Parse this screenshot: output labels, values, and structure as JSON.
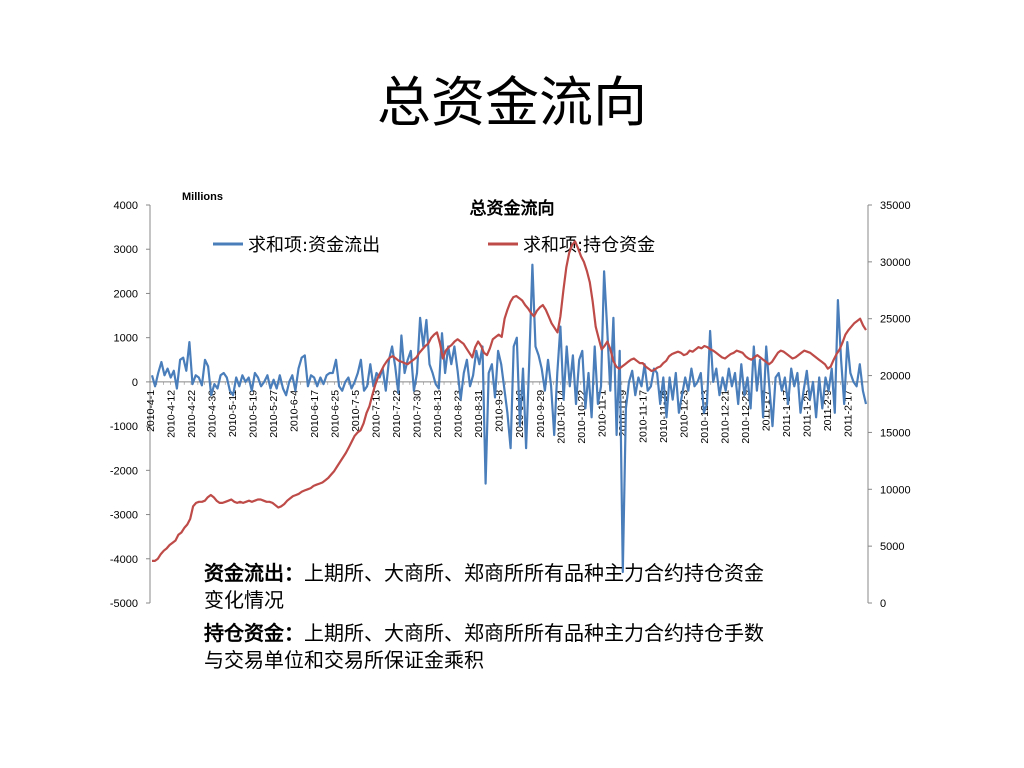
{
  "slide": {
    "title": "总资金流向"
  },
  "notes": [
    {
      "term": "资金流出：",
      "text": "上期所、大商所、郑商所所有品种主力合约持仓资金变化情况"
    },
    {
      "term": "持仓资金：",
      "text": "上期所、大商所、郑商所所有品种主力合约持仓手数与交易单位和交易所保证金乘积"
    }
  ],
  "chart_data": {
    "type": "line",
    "title": "总资金流向",
    "units_label": "Millions",
    "legend_position": "top",
    "grid": false,
    "y_left": {
      "min": -5000,
      "max": 4000,
      "ticks": [
        4000,
        3000,
        2000,
        1000,
        0,
        -1000,
        -2000,
        -3000,
        -4000,
        -5000
      ]
    },
    "y_right": {
      "min": 0,
      "max": 35000,
      "ticks": [
        35000,
        30000,
        25000,
        20000,
        15000,
        10000,
        5000,
        0
      ]
    },
    "x_tick_labels": [
      "2010-4-1",
      "2010-4-12",
      "2010-4-22",
      "2010-4-30",
      "2010-5-11",
      "2010-5-19",
      "2010-5-27",
      "2010-6-4",
      "2010-6-17",
      "2010-6-25",
      "2010-7-5",
      "2010-7-13",
      "2010-7-22",
      "2010-7-30",
      "2010-8-13",
      "2010-8-23",
      "2010-8-31",
      "2010-9-8",
      "2010-9-16",
      "2010-9-29",
      "2010-10-14",
      "2010-10-22",
      "2010-11-1",
      "2010-11-9",
      "2010-11-17",
      "2010-11-25",
      "2010-12-3",
      "2010-12-13",
      "2010-12-21",
      "2010-12-29",
      "2011-1-7",
      "2011-1-17",
      "2011-1-25",
      "2011-2-9",
      "2011-2-17"
    ],
    "series": [
      {
        "name": "求和项:资金流出",
        "axis": "left",
        "color": "#4a7ebb",
        "values": [
          150,
          -100,
          200,
          450,
          150,
          300,
          100,
          250,
          -150,
          500,
          550,
          250,
          900,
          -50,
          150,
          100,
          -80,
          500,
          350,
          -300,
          -50,
          -150,
          150,
          200,
          100,
          -200,
          -300,
          100,
          -100,
          150,
          0,
          100,
          -200,
          200,
          100,
          -100,
          0,
          150,
          -150,
          50,
          -150,
          150,
          -150,
          -300,
          0,
          150,
          -200,
          300,
          550,
          600,
          -100,
          150,
          100,
          -100,
          100,
          -50,
          150,
          200,
          200,
          500,
          -100,
          -200,
          0,
          100,
          -150,
          0,
          200,
          500,
          -200,
          -100,
          400,
          -100,
          200,
          100,
          300,
          -200,
          500,
          800,
          350,
          -250,
          1050,
          200,
          500,
          700,
          -200,
          200,
          1450,
          800,
          1400,
          400,
          200,
          -50,
          -150,
          1100,
          200,
          800,
          400,
          800,
          250,
          -400,
          200,
          500,
          -100,
          150,
          700,
          400,
          800,
          -2300,
          200,
          400,
          -350,
          700,
          400,
          -150,
          -700,
          -1500,
          800,
          1000,
          -1000,
          300,
          -1500,
          500,
          2650,
          800,
          600,
          300,
          -200,
          500,
          -100,
          -1200,
          200,
          1250,
          -400,
          800,
          -100,
          600,
          -500,
          500,
          700,
          -600,
          200,
          -800,
          800,
          -500,
          -100,
          2500,
          1200,
          -200,
          1450,
          -1200,
          700,
          -4300,
          -600,
          0,
          250,
          -300,
          100,
          -100,
          400,
          -200,
          -100,
          300,
          200,
          -500,
          100,
          -800,
          100,
          -400,
          200,
          -700,
          -300,
          100,
          -200,
          300,
          -100,
          0,
          200,
          -700,
          -500,
          1150,
          0,
          300,
          -300,
          100,
          -200,
          300,
          -100,
          200,
          -500,
          400,
          -300,
          100,
          -600,
          800,
          -200,
          500,
          -800,
          800,
          -100,
          -1000,
          100,
          200,
          -200,
          100,
          -500,
          300,
          -100,
          200,
          -700,
          -200,
          250,
          -400,
          0,
          -800,
          100,
          -600,
          100,
          -200,
          300,
          -700,
          1850,
          500,
          -500,
          900,
          200,
          0,
          -100,
          400,
          -200,
          -500
        ]
      },
      {
        "name": "求和项:持仓资金",
        "axis": "right",
        "color": "#be4b48",
        "values": [
          3700,
          3700,
          3900,
          4300,
          4600,
          4800,
          5100,
          5300,
          5500,
          6000,
          6200,
          6600,
          6900,
          7400,
          8500,
          8800,
          8900,
          8900,
          9000,
          9300,
          9500,
          9300,
          9000,
          8800,
          8800,
          8900,
          9000,
          9100,
          8900,
          8800,
          8900,
          8800,
          8900,
          9000,
          8900,
          9000,
          9100,
          9100,
          9000,
          8900,
          8900,
          8800,
          8600,
          8400,
          8500,
          8700,
          9000,
          9200,
          9400,
          9500,
          9600,
          9800,
          9900,
          10000,
          10100,
          10300,
          10400,
          10500,
          10600,
          10800,
          11000,
          11300,
          11600,
          12000,
          12400,
          12800,
          13200,
          13700,
          14200,
          14700,
          15000,
          15200,
          15800,
          16700,
          17300,
          18300,
          19200,
          19900,
          20400,
          20900,
          21300,
          21600,
          21700,
          21500,
          21300,
          21200,
          21100,
          21000,
          21200,
          21400,
          21600,
          22000,
          22300,
          22600,
          22800,
          23300,
          23600,
          23800,
          22800,
          21500,
          22200,
          22500,
          22700,
          23000,
          23200,
          23000,
          22800,
          22400,
          22000,
          21600,
          22500,
          23000,
          22600,
          22000,
          21800,
          22400,
          23200,
          23400,
          23600,
          23400,
          25000,
          25800,
          26500,
          26900,
          27000,
          26800,
          26600,
          26200,
          25900,
          25500,
          25200,
          25700,
          26000,
          26200,
          25800,
          25200,
          24600,
          24200,
          23800,
          25200,
          27500,
          29500,
          30800,
          31500,
          31800,
          31200,
          30500,
          30000,
          29200,
          28200,
          26500,
          24300,
          23300,
          22300,
          22600,
          23000,
          22300,
          21300,
          20800,
          20600,
          20800,
          21000,
          21200,
          21400,
          21500,
          21300,
          21100,
          21100,
          20800,
          20600,
          20400,
          20500,
          20700,
          20800,
          21100,
          21300,
          21700,
          21900,
          22000,
          22100,
          22000,
          21800,
          21900,
          22200,
          22100,
          22300,
          22500,
          22400,
          22600,
          22500,
          22300,
          22200,
          22000,
          21800,
          21600,
          21500,
          21700,
          21900,
          22000,
          22200,
          22100,
          22000,
          21700,
          21500,
          21400,
          21600,
          21800,
          21600,
          21400,
          21200,
          21000,
          21200,
          21600,
          22000,
          22200,
          22100,
          21900,
          21700,
          21500,
          21600,
          21800,
          22000,
          22200,
          22100,
          22000,
          21800,
          21600,
          21400,
          21200,
          21000,
          20600,
          20800,
          21400,
          21900,
          22300,
          22900,
          23600,
          24000,
          24300,
          24600,
          24800,
          25000,
          24400,
          24000
        ]
      }
    ]
  }
}
